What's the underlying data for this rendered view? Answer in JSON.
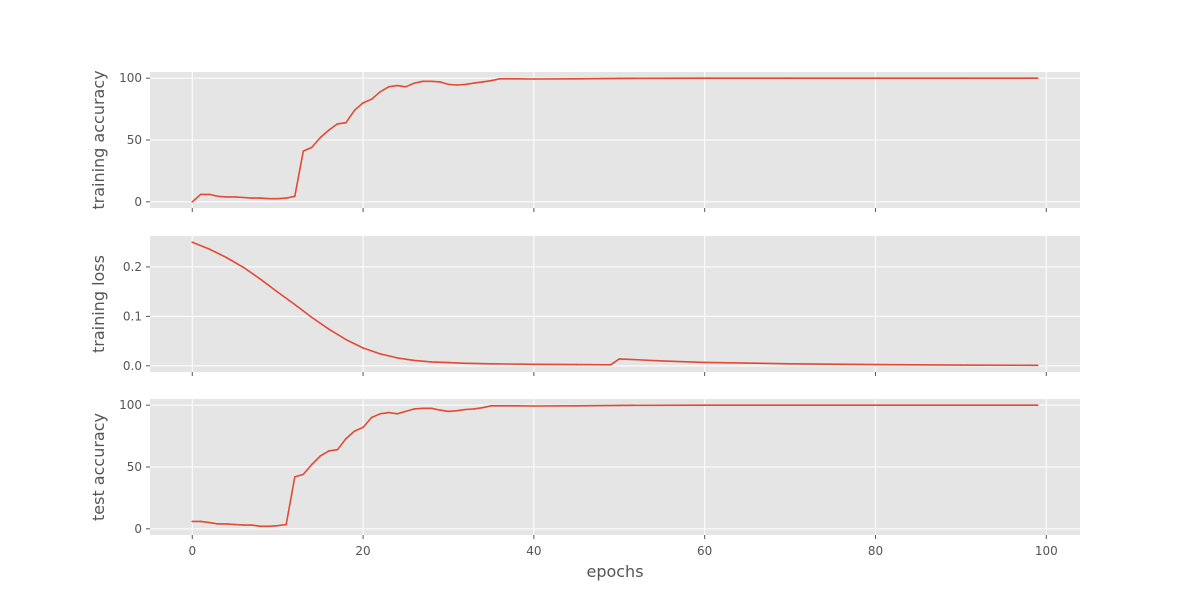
{
  "chart_data": {
    "type": "line",
    "x_label": "epochs",
    "x_ticks": [
      0,
      20,
      40,
      60,
      80,
      100
    ],
    "xlim": [
      -4.95,
      103.95
    ],
    "line_color": "#e24a33",
    "panel_color": "#e5e5e5",
    "grid": true,
    "panels": [
      {
        "ylabel": "training accuracy",
        "ylim": [
          -5,
          105
        ],
        "y_ticks": [
          0,
          50,
          100
        ],
        "y_tick_labels": [
          "0",
          "50",
          "100"
        ],
        "x": [
          0,
          1,
          2,
          3,
          4,
          5,
          6,
          7,
          8,
          9,
          10,
          11,
          12,
          13,
          14,
          15,
          16,
          17,
          18,
          19,
          20,
          21,
          22,
          23,
          24,
          25,
          26,
          27,
          28,
          29,
          30,
          31,
          32,
          33,
          34,
          35,
          36,
          38,
          40,
          45,
          50,
          60,
          70,
          80,
          90,
          99
        ],
        "values": [
          0,
          6,
          6,
          4.5,
          4,
          4,
          3.5,
          3,
          3,
          2.5,
          2.5,
          3,
          4.5,
          41,
          44,
          52,
          58,
          63,
          64,
          74,
          80,
          83,
          89,
          93,
          94,
          93,
          96,
          97.5,
          97.5,
          97,
          95,
          94.5,
          95,
          96,
          97,
          98,
          99.5,
          99.5,
          99.3,
          99.5,
          99.8,
          100,
          100,
          100,
          100,
          100
        ]
      },
      {
        "ylabel": "training loss",
        "ylim": [
          -0.0125,
          0.2625
        ],
        "y_ticks": [
          0,
          0.1,
          0.2
        ],
        "y_tick_labels": [
          "0.0",
          "0.1",
          "0.2"
        ],
        "x": [
          0,
          2,
          4,
          6,
          8,
          10,
          12,
          14,
          16,
          18,
          20,
          22,
          24,
          26,
          28,
          30,
          32,
          35,
          40,
          45,
          49,
          50,
          55,
          60,
          70,
          80,
          90,
          99
        ],
        "values": [
          0.25,
          0.236,
          0.219,
          0.199,
          0.175,
          0.149,
          0.124,
          0.098,
          0.074,
          0.053,
          0.036,
          0.024,
          0.016,
          0.011,
          0.008,
          0.0065,
          0.005,
          0.004,
          0.003,
          0.0025,
          0.002,
          0.014,
          0.01,
          0.007,
          0.004,
          0.0025,
          0.0015,
          0.001
        ]
      },
      {
        "ylabel": "test accuracy",
        "ylim": [
          -5,
          105
        ],
        "y_ticks": [
          0,
          50,
          100
        ],
        "y_tick_labels": [
          "0",
          "50",
          "100"
        ],
        "x": [
          0,
          1,
          2,
          3,
          4,
          5,
          6,
          7,
          8,
          9,
          10,
          11,
          12,
          13,
          14,
          15,
          16,
          17,
          18,
          19,
          20,
          21,
          22,
          23,
          24,
          25,
          26,
          27,
          28,
          29,
          30,
          31,
          32,
          33,
          34,
          35,
          36,
          38,
          40,
          45,
          50,
          60,
          70,
          80,
          90,
          99
        ],
        "values": [
          6,
          6,
          5,
          4,
          4,
          3.5,
          3,
          3,
          2,
          2,
          2.5,
          3.5,
          42,
          44,
          52,
          59,
          63,
          64,
          73,
          79,
          82,
          90,
          93,
          94,
          93,
          95,
          97,
          97.5,
          97.5,
          96,
          95,
          95.5,
          96.5,
          97,
          98,
          99.5,
          99.5,
          99.5,
          99.3,
          99.5,
          99.8,
          100,
          100,
          100,
          100,
          100
        ]
      }
    ]
  }
}
